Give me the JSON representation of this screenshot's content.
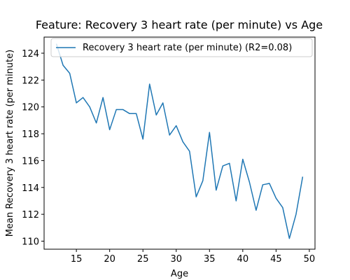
{
  "chart_data": {
    "type": "line",
    "title": "Feature: Recovery 3 heart rate (per minute) vs Age",
    "xlabel": "Age",
    "ylabel": "Mean Recovery 3 heart rate (per minute)",
    "xlim": [
      10.15,
      50.85
    ],
    "ylim": [
      109.4,
      125.2
    ],
    "xticks": [
      15,
      20,
      25,
      30,
      35,
      40,
      45,
      50
    ],
    "yticks": [
      110,
      112,
      114,
      116,
      118,
      120,
      122,
      124
    ],
    "legend_position": "top-right",
    "grid": false,
    "series": [
      {
        "name": "Recovery 3 heart rate (per minute) (R2=0.08)",
        "color": "#1f77b4",
        "x": [
          12,
          13,
          14,
          15,
          16,
          17,
          18,
          19,
          20,
          21,
          22,
          23,
          24,
          25,
          26,
          27,
          28,
          29,
          30,
          31,
          32,
          33,
          34,
          35,
          36,
          37,
          38,
          39,
          40,
          41,
          42,
          43,
          44,
          45,
          46,
          47,
          48,
          49
        ],
        "y": [
          124.7,
          123.1,
          122.5,
          120.3,
          120.7,
          120.0,
          118.8,
          120.7,
          118.3,
          119.8,
          119.8,
          119.5,
          119.5,
          117.6,
          121.7,
          119.4,
          120.3,
          117.9,
          118.6,
          117.4,
          116.7,
          113.3,
          114.5,
          118.1,
          113.8,
          115.6,
          115.8,
          113.0,
          116.1,
          114.4,
          112.3,
          114.2,
          114.3,
          113.2,
          112.5,
          110.2,
          112.0,
          114.8
        ]
      }
    ]
  }
}
